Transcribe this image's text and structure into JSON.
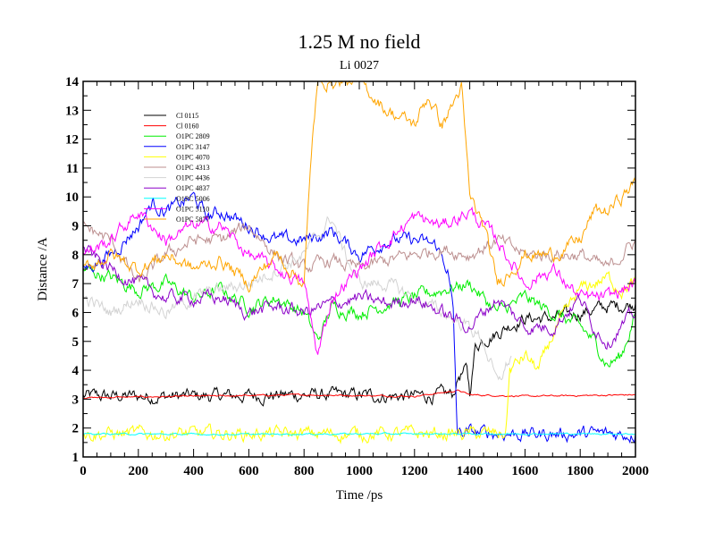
{
  "chart_data": {
    "type": "line",
    "title": "1.25 M no field",
    "subtitle": "Li 0027",
    "xlabel": "Time /ps",
    "ylabel": "Distance /A",
    "xlim": [
      0,
      2000
    ],
    "ylim": [
      1,
      14
    ],
    "xticks": [
      "0",
      "200",
      "400",
      "600",
      "800",
      "1000",
      "1200",
      "1400",
      "1600",
      "1800",
      "2000"
    ],
    "yticks": [
      "1",
      "2",
      "3",
      "4",
      "5",
      "6",
      "7",
      "8",
      "9",
      "10",
      "11",
      "12",
      "13",
      "14"
    ],
    "grid": false,
    "legend_position": "top-left",
    "series": [
      {
        "name": "Cl 0115",
        "color": "#000000",
        "points": [
          [
            0,
            3.1
          ],
          [
            400,
            3.1
          ],
          [
            800,
            3.15
          ],
          [
            1200,
            3.1
          ],
          [
            1340,
            3.15
          ],
          [
            1360,
            3.8
          ],
          [
            1390,
            4.0
          ],
          [
            1400,
            3.2
          ],
          [
            1420,
            4.8
          ],
          [
            1450,
            5.1
          ],
          [
            1500,
            5.3
          ],
          [
            1550,
            5.6
          ],
          [
            1600,
            5.8
          ],
          [
            1700,
            5.8
          ],
          [
            1760,
            5.9
          ],
          [
            1800,
            6.0
          ],
          [
            1900,
            6.2
          ],
          [
            2000,
            6.3
          ]
        ]
      },
      {
        "name": "Cl 0160",
        "color": "#ff0000",
        "points": [
          [
            0,
            3.05
          ],
          [
            400,
            3.1
          ],
          [
            800,
            3.15
          ],
          [
            1200,
            3.1
          ],
          [
            1360,
            3.3
          ],
          [
            1400,
            3.15
          ],
          [
            1600,
            3.1
          ],
          [
            2000,
            3.15
          ]
        ]
      },
      {
        "name": "O1PC 2809",
        "color": "#00ee00",
        "points": [
          [
            0,
            7.5
          ],
          [
            100,
            7.2
          ],
          [
            200,
            6.8
          ],
          [
            300,
            7.0
          ],
          [
            400,
            6.5
          ],
          [
            500,
            6.8
          ],
          [
            600,
            6.2
          ],
          [
            700,
            6.5
          ],
          [
            800,
            6.0
          ],
          [
            850,
            5.0
          ],
          [
            900,
            6.2
          ],
          [
            1000,
            6.0
          ],
          [
            1100,
            6.3
          ],
          [
            1200,
            6.5
          ],
          [
            1300,
            6.8
          ],
          [
            1400,
            7.0
          ],
          [
            1500,
            6.0
          ],
          [
            1600,
            6.5
          ],
          [
            1700,
            6.0
          ],
          [
            1800,
            5.5
          ],
          [
            1850,
            5.0
          ],
          [
            1900,
            4.2
          ],
          [
            1950,
            4.5
          ],
          [
            2000,
            6.0
          ]
        ]
      },
      {
        "name": "O1PC 3147",
        "color": "#0000ff",
        "points": [
          [
            0,
            7.5
          ],
          [
            100,
            8.0
          ],
          [
            200,
            9.0
          ],
          [
            250,
            9.8
          ],
          [
            300,
            9.5
          ],
          [
            400,
            10.0
          ],
          [
            450,
            9.3
          ],
          [
            500,
            9.5
          ],
          [
            600,
            9.0
          ],
          [
            700,
            8.5
          ],
          [
            800,
            8.5
          ],
          [
            900,
            8.8
          ],
          [
            1000,
            8.0
          ],
          [
            1100,
            8.5
          ],
          [
            1200,
            8.5
          ],
          [
            1280,
            8.3
          ],
          [
            1320,
            7.5
          ],
          [
            1340,
            6.0
          ],
          [
            1355,
            1.8
          ],
          [
            1400,
            1.85
          ],
          [
            1600,
            1.8
          ],
          [
            2000,
            1.8
          ]
        ]
      },
      {
        "name": "O1PC 4070",
        "color": "#ffff00",
        "points": [
          [
            0,
            1.8
          ],
          [
            800,
            1.8
          ],
          [
            1500,
            1.8
          ],
          [
            1530,
            1.8
          ],
          [
            1545,
            4.0
          ],
          [
            1600,
            4.5
          ],
          [
            1650,
            4.0
          ],
          [
            1700,
            5.2
          ],
          [
            1750,
            6.0
          ],
          [
            1800,
            6.8
          ],
          [
            1850,
            7.0
          ],
          [
            1900,
            7.2
          ],
          [
            1950,
            6.8
          ],
          [
            2000,
            7.0
          ]
        ]
      },
      {
        "name": "O1PC 4313",
        "color": "#bc8f8f",
        "points": [
          [
            0,
            9.0
          ],
          [
            100,
            8.5
          ],
          [
            200,
            7.0
          ],
          [
            300,
            8.0
          ],
          [
            400,
            8.5
          ],
          [
            500,
            8.5
          ],
          [
            600,
            9.0
          ],
          [
            700,
            8.0
          ],
          [
            800,
            7.5
          ],
          [
            900,
            7.8
          ],
          [
            1000,
            7.5
          ],
          [
            1100,
            7.8
          ],
          [
            1200,
            8.0
          ],
          [
            1300,
            8.2
          ],
          [
            1400,
            8.0
          ],
          [
            1500,
            8.5
          ],
          [
            1600,
            8.0
          ],
          [
            1700,
            8.0
          ],
          [
            1800,
            8.0
          ],
          [
            1900,
            7.5
          ],
          [
            2000,
            8.5
          ]
        ]
      },
      {
        "name": "O1PC 4436",
        "color": "#d3d3d3",
        "points": [
          [
            0,
            6.5
          ],
          [
            100,
            6.0
          ],
          [
            200,
            6.5
          ],
          [
            300,
            6.0
          ],
          [
            400,
            6.5
          ],
          [
            500,
            6.8
          ],
          [
            600,
            7.0
          ],
          [
            700,
            7.5
          ],
          [
            800,
            8.0
          ],
          [
            900,
            9.3
          ],
          [
            950,
            8.0
          ],
          [
            1000,
            7.0
          ],
          [
            1100,
            7.0
          ],
          [
            1200,
            6.5
          ],
          [
            1300,
            6.0
          ],
          [
            1400,
            5.5
          ],
          [
            1450,
            5.0
          ],
          [
            1500,
            3.5
          ],
          [
            1550,
            4.5
          ]
        ]
      },
      {
        "name": "O1PC 4837",
        "color": "#8b00c8",
        "points": [
          [
            0,
            8.2
          ],
          [
            100,
            7.5
          ],
          [
            200,
            7.0
          ],
          [
            300,
            6.5
          ],
          [
            400,
            6.5
          ],
          [
            500,
            6.5
          ],
          [
            600,
            6.0
          ],
          [
            700,
            6.2
          ],
          [
            800,
            6.0
          ],
          [
            900,
            6.3
          ],
          [
            1000,
            6.5
          ],
          [
            1100,
            6.3
          ],
          [
            1200,
            6.5
          ],
          [
            1300,
            6.0
          ],
          [
            1400,
            5.5
          ],
          [
            1500,
            6.5
          ],
          [
            1600,
            5.5
          ],
          [
            1700,
            5.5
          ],
          [
            1800,
            6.5
          ],
          [
            1850,
            5.5
          ],
          [
            1900,
            5.0
          ],
          [
            2000,
            6.0
          ]
        ]
      },
      {
        "name": "O1PC 5006",
        "color": "#00ffff",
        "points": [
          [
            0,
            1.8
          ],
          [
            500,
            1.78
          ],
          [
            1000,
            1.8
          ],
          [
            1500,
            1.8
          ],
          [
            2000,
            1.8
          ]
        ]
      },
      {
        "name": "O1PC 5110",
        "color": "#ff00ff",
        "points": [
          [
            0,
            8.0
          ],
          [
            100,
            8.5
          ],
          [
            200,
            9.5
          ],
          [
            300,
            8.5
          ],
          [
            400,
            9.0
          ],
          [
            500,
            9.0
          ],
          [
            600,
            8.0
          ],
          [
            700,
            7.5
          ],
          [
            800,
            7.0
          ],
          [
            850,
            4.5
          ],
          [
            900,
            6.5
          ],
          [
            1000,
            7.5
          ],
          [
            1100,
            8.5
          ],
          [
            1200,
            9.3
          ],
          [
            1300,
            9.0
          ],
          [
            1400,
            9.5
          ],
          [
            1500,
            8.5
          ],
          [
            1600,
            7.0
          ],
          [
            1700,
            7.5
          ],
          [
            1800,
            6.5
          ],
          [
            1900,
            6.5
          ],
          [
            2000,
            7.0
          ]
        ]
      },
      {
        "name": "O1PC 5877",
        "color": "#ffa500",
        "points": [
          [
            0,
            7.5
          ],
          [
            100,
            8.0
          ],
          [
            200,
            7.5
          ],
          [
            300,
            8.0
          ],
          [
            400,
            7.5
          ],
          [
            500,
            7.8
          ],
          [
            600,
            7.0
          ],
          [
            700,
            8.0
          ],
          [
            800,
            7.0
          ],
          [
            830,
            12.0
          ],
          [
            850,
            14.0
          ],
          [
            1000,
            14.0
          ],
          [
            1100,
            13.0
          ],
          [
            1200,
            12.5
          ],
          [
            1250,
            13.5
          ],
          [
            1300,
            12.5
          ],
          [
            1370,
            13.8
          ],
          [
            1400,
            10.0
          ],
          [
            1450,
            9.0
          ],
          [
            1500,
            7.0
          ],
          [
            1600,
            8.0
          ],
          [
            1700,
            8.0
          ],
          [
            1800,
            8.5
          ],
          [
            1850,
            9.5
          ],
          [
            1900,
            9.5
          ],
          [
            2000,
            10.5
          ]
        ]
      }
    ]
  }
}
